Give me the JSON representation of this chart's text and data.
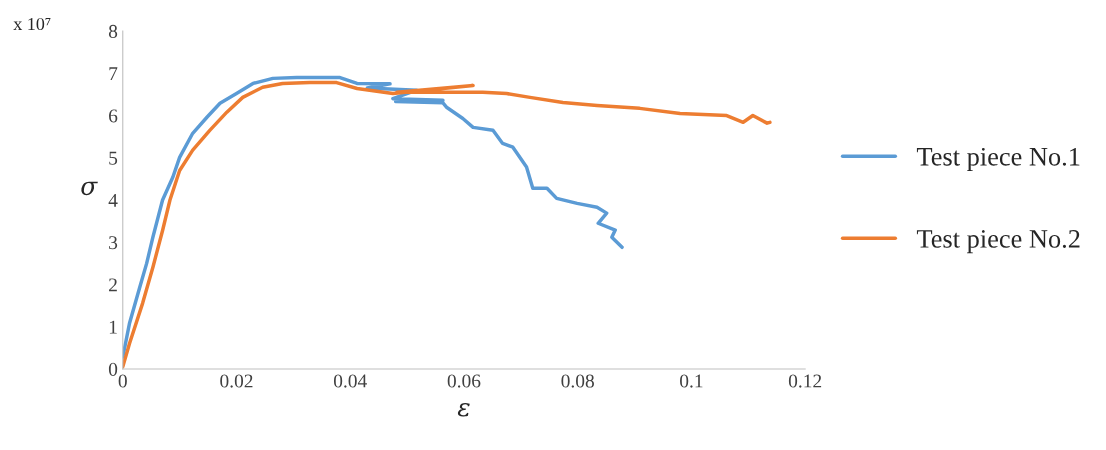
{
  "chart_data": {
    "type": "line",
    "xlabel": "ε",
    "ylabel": "σ",
    "annotations": [
      "x 10⁷"
    ],
    "xlim": [
      0,
      0.12
    ],
    "xticks": [
      0,
      0.02,
      0.04,
      0.06,
      0.08,
      0.1,
      0.12
    ],
    "ylim": [
      0,
      8
    ],
    "yticks": [
      0,
      1,
      2,
      3,
      4,
      5,
      6,
      7,
      8
    ],
    "grid": false,
    "legend": "right",
    "marker": "none",
    "line_style": "solid",
    "series": [
      {
        "name": "Test piece No.1",
        "color": "#5b9bd5",
        "x": [
          0,
          0.0012,
          0.003,
          0.0042,
          0.0053,
          0.007,
          0.0088,
          0.01,
          0.0123,
          0.0148,
          0.0171,
          0.02,
          0.0229,
          0.0264,
          0.0306,
          0.0341,
          0.0382,
          0.0412,
          0.047,
          0.043,
          0.0517,
          0.0475,
          0.0563,
          0.048,
          0.0563,
          0.057,
          0.0598,
          0.0616,
          0.0651,
          0.0668,
          0.0686,
          0.071,
          0.0721,
          0.0746,
          0.0763,
          0.0799,
          0.0834,
          0.0851,
          0.0836,
          0.0866,
          0.086,
          0.0878
        ],
        "values": [
          0.28,
          1.09,
          1.94,
          2.5,
          3.12,
          4.0,
          4.54,
          5.01,
          5.58,
          5.96,
          6.29,
          6.52,
          6.76,
          6.88,
          6.9,
          6.9,
          6.9,
          6.76,
          6.75,
          6.65,
          6.6,
          6.4,
          6.36,
          6.33,
          6.3,
          6.19,
          5.93,
          5.72,
          5.65,
          5.34,
          5.25,
          4.78,
          4.28,
          4.28,
          4.04,
          3.92,
          3.83,
          3.69,
          3.45,
          3.29,
          3.12,
          2.88
        ]
      },
      {
        "name": "Test piece No.2",
        "color": "#ed7d31",
        "x": [
          0,
          0.0012,
          0.0035,
          0.0053,
          0.007,
          0.0083,
          0.01,
          0.0123,
          0.0153,
          0.0183,
          0.0211,
          0.0246,
          0.0281,
          0.0329,
          0.0376,
          0.0412,
          0.0475,
          0.0616,
          0.0482,
          0.0633,
          0.0675,
          0.0716,
          0.0774,
          0.0834,
          0.0909,
          0.098,
          0.1062,
          0.1091,
          0.1108,
          0.1133,
          0.1138
        ],
        "values": [
          0.05,
          0.61,
          1.56,
          2.41,
          3.28,
          4.0,
          4.7,
          5.18,
          5.65,
          6.08,
          6.43,
          6.67,
          6.76,
          6.78,
          6.78,
          6.64,
          6.52,
          6.71,
          6.55,
          6.55,
          6.52,
          6.43,
          6.31,
          6.24,
          6.17,
          6.05,
          6.0,
          5.84,
          6.0,
          5.82,
          5.84
        ]
      }
    ]
  }
}
